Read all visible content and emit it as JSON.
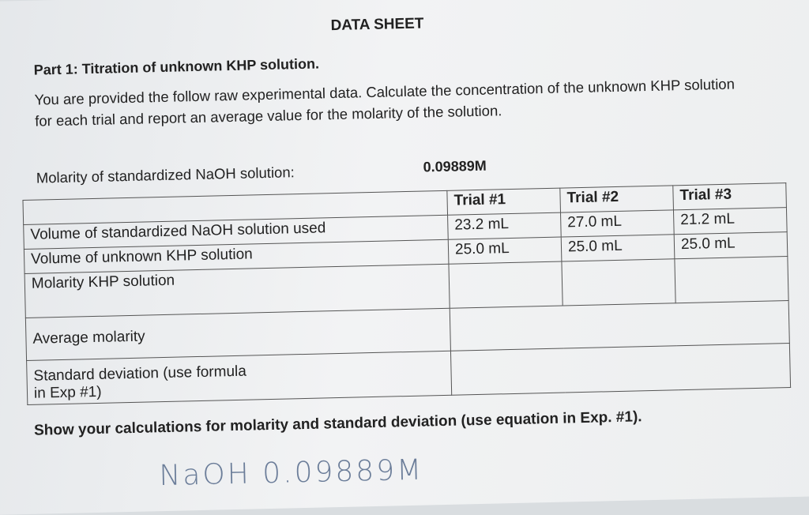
{
  "title": "DATA SHEET",
  "part_heading": "Part 1: Titration of unknown KHP solution.",
  "instructions": "You are provided the follow raw experimental data. Calculate the concentration of the unknown KHP solution for each trial and report an average value for the molarity of the solution.",
  "naoh": {
    "label": "Molarity of standardized NaOH solution:",
    "value": "0.09889M"
  },
  "table": {
    "header": [
      "Trial #1",
      "Trial #2",
      "Trial #3"
    ],
    "rows": [
      [
        "Volume of standardized NaOH solution used",
        "23.2 mL",
        "27.0 mL",
        "21.2 mL"
      ],
      [
        "Volume of unknown KHP solution",
        "25.0 mL",
        "25.0 mL",
        "25.0 mL"
      ],
      [
        "Molarity KHP solution"
      ]
    ],
    "summary_rows": [
      "Average molarity",
      "Standard deviation (use formula in Exp #1)"
    ]
  },
  "footer": "Show your calculations for molarity and standard deviation (use equation in Exp. #1).",
  "handwriting": "NaOH 0.09889M"
}
